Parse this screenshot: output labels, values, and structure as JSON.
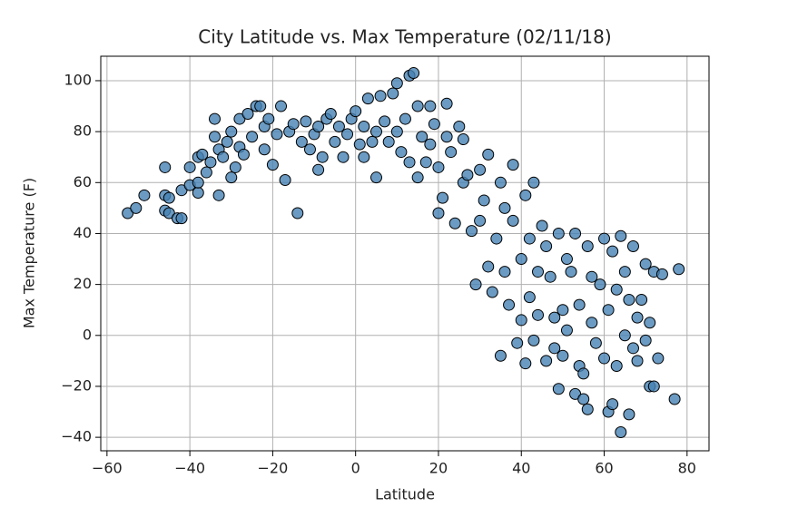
{
  "chart_data": {
    "type": "scatter",
    "title": "City Latitude vs. Max Temperature (02/11/18)",
    "xlabel": "Latitude",
    "ylabel": "Max Temperature (F)",
    "color": "#4682b4",
    "edgecolor": "#000000",
    "grid": true,
    "xlim": [
      -61.5,
      85.3
    ],
    "ylim": [
      -45.3,
      109.6
    ],
    "xticks": [
      {
        "value": -60,
        "label": "−60"
      },
      {
        "value": -40,
        "label": "−40"
      },
      {
        "value": -20,
        "label": "−20"
      },
      0,
      20,
      40,
      60,
      80
    ],
    "yticks": [
      {
        "value": -40,
        "label": "−40"
      },
      {
        "value": -20,
        "label": "−20"
      },
      0,
      20,
      40,
      60,
      80,
      100
    ],
    "x": [
      -55,
      -53,
      -51,
      -46,
      -46,
      -45,
      -46,
      -45,
      -43,
      -42,
      -42,
      -40,
      -40,
      -38,
      -37,
      -38,
      -38,
      -36,
      -35,
      -34,
      -34,
      -33,
      -33,
      -32,
      -31,
      -30,
      -30,
      -29,
      -28,
      -28,
      -27,
      -26,
      -25,
      -24,
      -23,
      -22,
      -22,
      -21,
      -20,
      -19,
      -18,
      -17,
      -16,
      -15,
      -14,
      -13,
      -12,
      -11,
      -10,
      -9,
      -9,
      -8,
      -7,
      -6,
      -5,
      -4,
      -3,
      -2,
      -1,
      0,
      1,
      2,
      2,
      3,
      4,
      5,
      5,
      6,
      7,
      8,
      9,
      10,
      10,
      11,
      12,
      13,
      13,
      14,
      15,
      15,
      16,
      17,
      18,
      18,
      19,
      20,
      20,
      21,
      22,
      22,
      23,
      24,
      25,
      26,
      26,
      27,
      28,
      29,
      30,
      30,
      31,
      32,
      32,
      33,
      34,
      35,
      35,
      36,
      36,
      37,
      38,
      38,
      39,
      40,
      40,
      41,
      41,
      42,
      42,
      43,
      43,
      44,
      44,
      45,
      46,
      46,
      47,
      48,
      48,
      49,
      49,
      50,
      50,
      51,
      51,
      52,
      53,
      53,
      54,
      54,
      55,
      55,
      56,
      56,
      57,
      57,
      58,
      59,
      60,
      60,
      61,
      61,
      62,
      62,
      63,
      63,
      64,
      64,
      65,
      65,
      66,
      66,
      67,
      67,
      68,
      68,
      69,
      70,
      70,
      71,
      71,
      72,
      72,
      73,
      74,
      77,
      78
    ],
    "values": [
      48,
      50,
      55,
      66,
      55,
      54,
      49,
      48,
      46,
      46,
      57,
      59,
      66,
      70,
      71,
      56,
      60,
      64,
      68,
      85,
      78,
      73,
      55,
      70,
      76,
      62,
      80,
      66,
      74,
      85,
      71,
      87,
      78,
      90,
      90,
      82,
      73,
      85,
      67,
      79,
      90,
      61,
      80,
      83,
      48,
      76,
      84,
      73,
      79,
      82,
      65,
      70,
      85,
      87,
      76,
      82,
      70,
      79,
      85,
      88,
      75,
      70,
      82,
      93,
      76,
      80,
      62,
      94,
      84,
      76,
      95,
      80,
      99,
      72,
      85,
      102,
      68,
      103,
      90,
      62,
      78,
      68,
      75,
      90,
      83,
      48,
      66,
      54,
      91,
      78,
      72,
      44,
      82,
      60,
      77,
      63,
      41,
      20,
      65,
      45,
      53,
      27,
      71,
      17,
      38,
      60,
      -8,
      50,
      25,
      12,
      45,
      67,
      -3,
      6,
      30,
      -11,
      55,
      15,
      38,
      60,
      -2,
      25,
      8,
      43,
      -10,
      35,
      23,
      7,
      -5,
      -21,
      40,
      10,
      -8,
      30,
      2,
      25,
      -23,
      40,
      -12,
      12,
      -15,
      -25,
      35,
      -29,
      23,
      5,
      -3,
      20,
      38,
      -9,
      -30,
      10,
      33,
      -27,
      -12,
      18,
      -38,
      39,
      0,
      25,
      -31,
      14,
      -5,
      35,
      -10,
      7,
      14,
      -2,
      28,
      -20,
      5,
      25,
      -20,
      -9,
      24,
      -25,
      26
    ]
  }
}
